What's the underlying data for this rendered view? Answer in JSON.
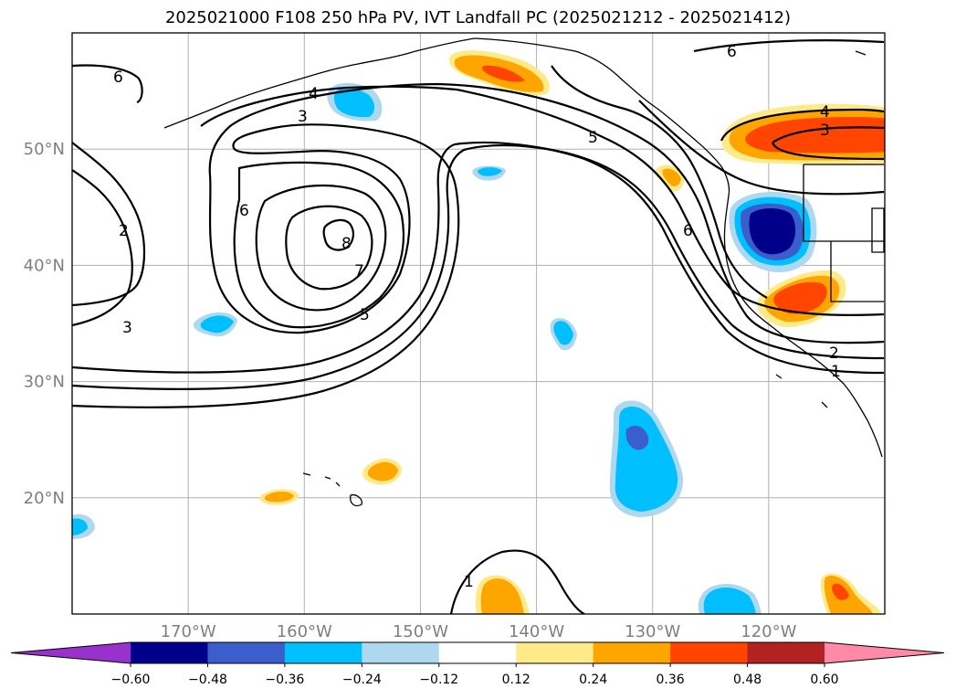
{
  "title": "2025021000 F108 250 hPa PV, IVT Landfall PC (2025021212 - 2025021412)",
  "map": {
    "projection": "cylindrical",
    "lon_range": [
      -180,
      -110
    ],
    "lat_range": [
      10,
      60
    ],
    "gridlines": true,
    "grid_color": "#b0b0b0",
    "lat_ticks": [
      {
        "lat": 50,
        "label": "50°N"
      },
      {
        "lat": 40,
        "label": "40°N"
      },
      {
        "lat": 30,
        "label": "30°N"
      },
      {
        "lat": 20,
        "label": "20°N"
      }
    ],
    "lon_ticks": [
      {
        "lon": -170,
        "label": "170°W"
      },
      {
        "lon": -160,
        "label": "160°W"
      },
      {
        "lon": -150,
        "label": "150°W"
      },
      {
        "lon": -140,
        "label": "140°W"
      },
      {
        "lon": -130,
        "label": "130°W"
      },
      {
        "lon": -120,
        "label": "120°W"
      }
    ]
  },
  "colorbar": {
    "boundaries": [
      "−0.60",
      "−0.48",
      "−0.36",
      "−0.24",
      "−0.12",
      "0.12",
      "0.24",
      "0.36",
      "0.48",
      "0.60"
    ],
    "colors": [
      "#9932cc",
      "#00008b",
      "#3a5fcd",
      "#00bfff",
      "#add8f0",
      "#ffffff",
      "#ffea8a",
      "#ffa500",
      "#ff4500",
      "#b22222",
      "#ff8aa8"
    ],
    "extend": "both"
  },
  "contour_labels": [
    "6",
    "4",
    "3",
    "2",
    "3",
    "6",
    "8",
    "7",
    "5",
    "5",
    "6",
    "6",
    "4",
    "3",
    "2",
    "1",
    "1"
  ],
  "chart_data": {
    "type": "heatmap",
    "title": "2025021000 F108 250 hPa PV, IVT Landfall PC (2025021212 - 2025021412)",
    "fields": [
      "250 hPa PV (contours)",
      "IVT Landfall PC (shaded)"
    ],
    "contour_levels_labeled": [
      1,
      2,
      3,
      4,
      5,
      6,
      7,
      8
    ],
    "shaded_extrema": [
      {
        "lon": -120,
        "lat": 43,
        "sign": "negative",
        "class": "below −0.48"
      },
      {
        "lon": -116,
        "lat": 37.5,
        "sign": "positive",
        "class": "0.36 to 0.48"
      },
      {
        "lon": -113,
        "lat": 51.5,
        "sign": "positive",
        "class": "0.36 to 0.48"
      },
      {
        "lon": -141,
        "lat": 56.5,
        "sign": "positive",
        "class": "0.36 to 0.48"
      },
      {
        "lon": -130.5,
        "lat": 25,
        "sign": "negative",
        "class": "−0.48 to −0.36"
      }
    ],
    "colorbar_ticks": [
      -0.6,
      -0.48,
      -0.36,
      -0.24,
      -0.12,
      0.12,
      0.24,
      0.36,
      0.48,
      0.6
    ]
  }
}
